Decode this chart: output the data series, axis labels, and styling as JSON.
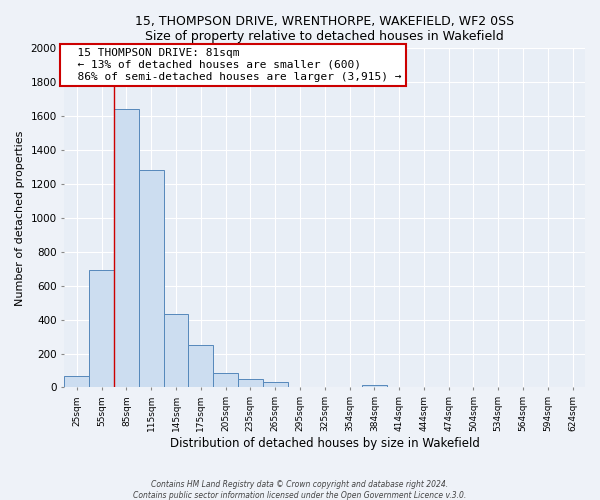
{
  "title": "15, THOMPSON DRIVE, WRENTHORPE, WAKEFIELD, WF2 0SS",
  "subtitle": "Size of property relative to detached houses in Wakefield",
  "xlabel": "Distribution of detached houses by size in Wakefield",
  "ylabel": "Number of detached properties",
  "bar_labels": [
    "25sqm",
    "55sqm",
    "85sqm",
    "115sqm",
    "145sqm",
    "175sqm",
    "205sqm",
    "235sqm",
    "265sqm",
    "295sqm",
    "325sqm",
    "354sqm",
    "384sqm",
    "414sqm",
    "444sqm",
    "474sqm",
    "504sqm",
    "534sqm",
    "564sqm",
    "594sqm",
    "624sqm"
  ],
  "bar_values": [
    65,
    690,
    1640,
    1285,
    435,
    252,
    88,
    52,
    30,
    0,
    0,
    0,
    13,
    0,
    0,
    0,
    0,
    0,
    0,
    0,
    0
  ],
  "bar_color": "#ccddf0",
  "bar_edge_color": "#5588bb",
  "property_line_color": "#cc0000",
  "annotation_title": "15 THOMPSON DRIVE: 81sqm",
  "annotation_line1": "← 13% of detached houses are smaller (600)",
  "annotation_line2": "86% of semi-detached houses are larger (3,915) →",
  "annotation_box_color": "#ffffff",
  "annotation_box_edge_color": "#cc0000",
  "ylim": [
    0,
    2000
  ],
  "yticks": [
    0,
    200,
    400,
    600,
    800,
    1000,
    1200,
    1400,
    1600,
    1800,
    2000
  ],
  "footer1": "Contains HM Land Registry data © Crown copyright and database right 2024.",
  "footer2": "Contains public sector information licensed under the Open Government Licence v.3.0.",
  "bg_color": "#eef2f8",
  "plot_bg_color": "#e8eef6"
}
